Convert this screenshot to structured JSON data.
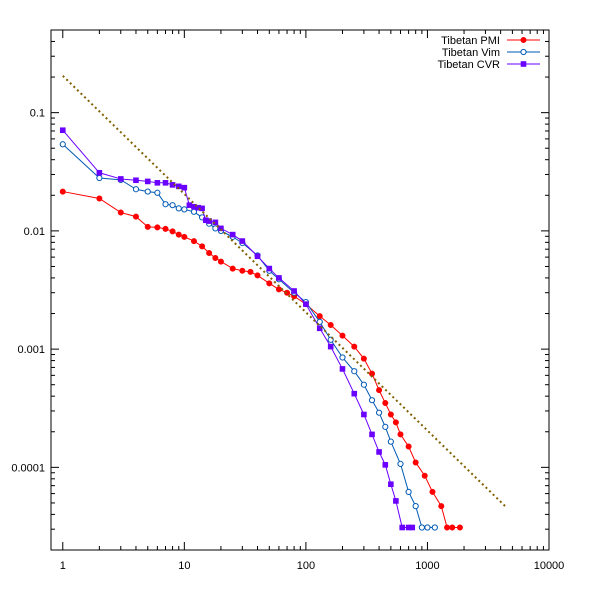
{
  "chart_data": {
    "type": "scatter",
    "title": "",
    "xlabel": "",
    "ylabel": "",
    "x_scale": "log",
    "y_scale": "log",
    "xlim": [
      0.8,
      10000
    ],
    "ylim": [
      2e-05,
      0.5
    ],
    "x_ticks": [
      1,
      10,
      100,
      1000,
      10000
    ],
    "x_tick_labels": [
      "1",
      "10",
      "100",
      "1000",
      "10000"
    ],
    "y_ticks": [
      0.0001,
      0.001,
      0.01,
      0.1
    ],
    "y_tick_labels": [
      "0.0001",
      "0.001",
      "0.01",
      "0.1"
    ],
    "grid": false,
    "legend_position": "top-right",
    "series": [
      {
        "name": "Tibetan PMI",
        "color": "#ff0000",
        "marker": "filled-circle",
        "points": [
          [
            1,
            0.0215
          ],
          [
            2,
            0.0188
          ],
          [
            3,
            0.0143
          ],
          [
            4,
            0.0132
          ],
          [
            5,
            0.0108
          ],
          [
            6,
            0.0107
          ],
          [
            7,
            0.0104
          ],
          [
            8,
            0.0099
          ],
          [
            9,
            0.0093
          ],
          [
            10,
            0.0089
          ],
          [
            12,
            0.0082
          ],
          [
            14,
            0.0074
          ],
          [
            16,
            0.0065
          ],
          [
            18,
            0.0059
          ],
          [
            20,
            0.0055
          ],
          [
            25,
            0.0048
          ],
          [
            30,
            0.0046
          ],
          [
            35,
            0.0045
          ],
          [
            40,
            0.0042
          ],
          [
            50,
            0.0036
          ],
          [
            60,
            0.0032
          ],
          [
            70,
            0.003
          ],
          [
            80,
            0.0028
          ],
          [
            100,
            0.0024
          ],
          [
            130,
            0.0019
          ],
          [
            160,
            0.0016
          ],
          [
            200,
            0.0013
          ],
          [
            250,
            0.00105
          ],
          [
            300,
            0.00083
          ],
          [
            350,
            0.00062
          ],
          [
            400,
            0.00045
          ],
          [
            450,
            0.00035
          ],
          [
            500,
            0.00028
          ],
          [
            550,
            0.00024
          ],
          [
            600,
            0.00019
          ],
          [
            700,
            0.00015
          ],
          [
            800,
            0.00011
          ],
          [
            950,
            8.5e-05
          ],
          [
            1100,
            6.2e-05
          ],
          [
            1300,
            4.7e-05
          ],
          [
            1450,
            3.1e-05
          ],
          [
            1600,
            3.1e-05
          ],
          [
            1850,
            3.1e-05
          ]
        ]
      },
      {
        "name": "Tibetan Vim",
        "color": "#005ab4",
        "marker": "open-circle",
        "points": [
          [
            1,
            0.054
          ],
          [
            2,
            0.028
          ],
          [
            3,
            0.027
          ],
          [
            4,
            0.0225
          ],
          [
            5,
            0.0215
          ],
          [
            6,
            0.021
          ],
          [
            7,
            0.0168
          ],
          [
            8,
            0.0165
          ],
          [
            9,
            0.0155
          ],
          [
            10,
            0.0152
          ],
          [
            12,
            0.0145
          ],
          [
            14,
            0.013
          ],
          [
            16,
            0.0115
          ],
          [
            18,
            0.0105
          ],
          [
            20,
            0.01
          ],
          [
            25,
            0.0089
          ],
          [
            30,
            0.0079
          ],
          [
            40,
            0.0062
          ],
          [
            50,
            0.0046
          ],
          [
            60,
            0.0039
          ],
          [
            80,
            0.003
          ],
          [
            100,
            0.0025
          ],
          [
            130,
            0.0017
          ],
          [
            160,
            0.0012
          ],
          [
            200,
            0.00085
          ],
          [
            250,
            0.00065
          ],
          [
            300,
            0.0005
          ],
          [
            350,
            0.00037
          ],
          [
            400,
            0.00029
          ],
          [
            450,
            0.00022
          ],
          [
            500,
            0.000165
          ],
          [
            600,
            0.000107
          ],
          [
            700,
            6.2e-05
          ],
          [
            800,
            4.7e-05
          ],
          [
            900,
            3.1e-05
          ],
          [
            1000,
            3.1e-05
          ],
          [
            1150,
            3.1e-05
          ]
        ]
      },
      {
        "name": "Tibetan CVR",
        "color": "#6a00ff",
        "marker": "filled-square",
        "points": [
          [
            1,
            0.071
          ],
          [
            2,
            0.031
          ],
          [
            3,
            0.0275
          ],
          [
            4,
            0.0268
          ],
          [
            5,
            0.0262
          ],
          [
            6,
            0.0255
          ],
          [
            7,
            0.0255
          ],
          [
            8,
            0.0245
          ],
          [
            9,
            0.0238
          ],
          [
            10,
            0.0232
          ],
          [
            11,
            0.0165
          ],
          [
            12,
            0.016
          ],
          [
            13,
            0.0157
          ],
          [
            14,
            0.0155
          ],
          [
            15,
            0.0123
          ],
          [
            16,
            0.0121
          ],
          [
            18,
            0.0118
          ],
          [
            20,
            0.0105
          ],
          [
            25,
            0.0093
          ],
          [
            30,
            0.0082
          ],
          [
            40,
            0.0061
          ],
          [
            50,
            0.0048
          ],
          [
            60,
            0.004
          ],
          [
            80,
            0.0031
          ],
          [
            100,
            0.0024
          ],
          [
            130,
            0.0015
          ],
          [
            160,
            0.00105
          ],
          [
            200,
            0.00068
          ],
          [
            250,
            0.00042
          ],
          [
            300,
            0.00028
          ],
          [
            350,
            0.00019
          ],
          [
            400,
            0.000135
          ],
          [
            450,
            0.000105
          ],
          [
            500,
            7.2e-05
          ],
          [
            550,
            5.2e-05
          ],
          [
            620,
            3.1e-05
          ],
          [
            700,
            3.1e-05
          ],
          [
            750,
            3.1e-05
          ]
        ]
      },
      {
        "name": "",
        "color": "#806000",
        "style": "dotted-line",
        "points": [
          [
            1,
            0.205
          ],
          [
            4500,
            4.55e-05
          ]
        ]
      }
    ]
  }
}
